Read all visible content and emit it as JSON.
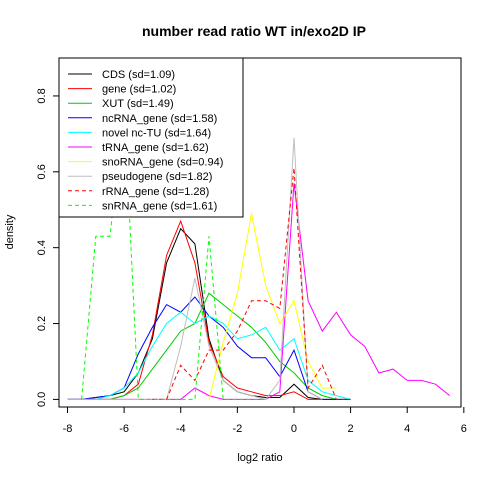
{
  "chart_data": {
    "type": "line",
    "title": "number read ratio WT in/exo2D IP",
    "xlabel": "log2 ratio",
    "ylabel": "density",
    "xlim": [
      -8.3,
      5.9
    ],
    "ylim": [
      -0.02,
      0.9
    ],
    "x_ticks": [
      -8,
      -6,
      -4,
      -2,
      0,
      2,
      4,
      6
    ],
    "y_ticks": [
      0.0,
      0.2,
      0.4,
      0.6,
      0.8
    ],
    "grid": false,
    "legend_position": "top-left",
    "series": [
      {
        "name": "CDS (sd=1.09)",
        "color": "#000000",
        "dash": "solid",
        "x": [
          -8,
          -7.5,
          -7,
          -6.5,
          -6,
          -5.5,
          -5,
          -4.5,
          -4,
          -3.5,
          -3,
          -2.5,
          -2,
          -1.5,
          -1,
          -0.5,
          0,
          0.5,
          1,
          1.5
        ],
        "y": [
          0,
          0,
          0.005,
          0.01,
          0.02,
          0.07,
          0.16,
          0.36,
          0.45,
          0.41,
          0.16,
          0.05,
          0.02,
          0.01,
          0.005,
          0.005,
          0.04,
          0.005,
          0,
          0
        ]
      },
      {
        "name": "gene (sd=1.02)",
        "color": "#ff0000",
        "dash": "solid",
        "x": [
          -8,
          -7.5,
          -7,
          -6.5,
          -6,
          -5.5,
          -5,
          -4.5,
          -4,
          -3.5,
          -3,
          -2.5,
          -2,
          -1.5,
          -1,
          -0.5,
          0,
          0.5,
          1
        ],
        "y": [
          0,
          0,
          0,
          0,
          0.01,
          0.04,
          0.17,
          0.38,
          0.47,
          0.36,
          0.15,
          0.06,
          0.03,
          0.02,
          0.01,
          0.01,
          0.02,
          0,
          0
        ]
      },
      {
        "name": "XUT (sd=1.49)",
        "color": "#00cc00",
        "dash": "solid",
        "x": [
          -8,
          -7.5,
          -7,
          -6.5,
          -6,
          -5.5,
          -5,
          -4.5,
          -4,
          -3.5,
          -3,
          -2.5,
          -2,
          -1.5,
          -1,
          -0.5,
          0,
          0.5,
          1,
          1.5,
          2
        ],
        "y": [
          0,
          0,
          0,
          0,
          0.01,
          0.03,
          0.08,
          0.13,
          0.18,
          0.2,
          0.28,
          0.25,
          0.22,
          0.19,
          0.15,
          0.1,
          0.07,
          0.03,
          0.01,
          0,
          0
        ]
      },
      {
        "name": "ncRNA_gene (sd=1.58)",
        "color": "#0000ff",
        "dash": "solid",
        "x": [
          -8,
          -7.5,
          -7,
          -6.5,
          -6,
          -5.5,
          -5,
          -4.5,
          -4,
          -3.5,
          -3,
          -2.5,
          -2,
          -1.5,
          -1,
          -0.5,
          0,
          0.5,
          1,
          1.5,
          2
        ],
        "y": [
          0,
          0,
          0.005,
          0.01,
          0.03,
          0.12,
          0.19,
          0.25,
          0.23,
          0.27,
          0.22,
          0.19,
          0.14,
          0.11,
          0.11,
          0.06,
          0.13,
          0.02,
          0,
          0,
          0
        ]
      },
      {
        "name": "novel nc-TU (sd=1.64)",
        "color": "#00ffff",
        "dash": "solid",
        "x": [
          -8,
          -7.5,
          -7,
          -6.5,
          -6,
          -5.5,
          -5,
          -4.5,
          -4,
          -3.5,
          -3,
          -2.5,
          -2,
          -1.5,
          -1,
          -0.5,
          0,
          0.5,
          1,
          1.5,
          2
        ],
        "y": [
          0,
          0,
          0,
          0.01,
          0.03,
          0.07,
          0.14,
          0.2,
          0.23,
          0.2,
          0.22,
          0.2,
          0.16,
          0.17,
          0.19,
          0.13,
          0.16,
          0.05,
          0.02,
          0.01,
          0
        ]
      },
      {
        "name": "tRNA_gene (sd=1.62)",
        "color": "#ff00ff",
        "dash": "solid",
        "x": [
          -8,
          -7.5,
          -7,
          -6.5,
          -6,
          -5.5,
          -5,
          -4.5,
          -4,
          -3.5,
          -3,
          -2.5,
          -2,
          -1.5,
          -1,
          -0.5,
          0,
          0.5,
          1,
          1.5,
          2,
          2.5,
          3,
          3.5,
          4,
          4.5,
          5,
          5.5
        ],
        "y": [
          0,
          0,
          0,
          0,
          0,
          0,
          0,
          0,
          0,
          0.03,
          0.01,
          0,
          0,
          0,
          0,
          0.02,
          0.57,
          0.26,
          0.18,
          0.23,
          0.17,
          0.14,
          0.07,
          0.08,
          0.05,
          0.05,
          0.04,
          0.01
        ]
      },
      {
        "name": "snoRNA_gene (sd=0.94)",
        "color": "#ffff00",
        "dash": "solid",
        "x": [
          -3,
          -2.5,
          -2,
          -1.5,
          -1,
          -0.5,
          0,
          0.5,
          1,
          1.5
        ],
        "y": [
          0,
          0.15,
          0.28,
          0.49,
          0.3,
          0.2,
          0.26,
          0.1,
          0.03,
          0.03
        ]
      },
      {
        "name": "pseudogene (sd=1.82)",
        "color": "#bebebe",
        "dash": "solid",
        "x": [
          -8,
          -7.5,
          -7,
          -6.5,
          -6,
          -5.5,
          -5,
          -4.5,
          -4,
          -3.5,
          -3,
          -2.5,
          -2,
          -1.5,
          -1,
          -0.5,
          0,
          0.5,
          1
        ],
        "y": [
          0,
          0,
          0,
          0,
          0,
          0,
          0,
          0,
          0.14,
          0.32,
          0.14,
          0.05,
          0.02,
          0.01,
          0,
          0.05,
          0.69,
          0.02,
          0
        ]
      },
      {
        "name": "rRNA_gene (sd=1.28)",
        "color": "#ff0000",
        "dash": "dashed",
        "x": [
          -5,
          -4.5,
          -4,
          -3.5,
          -3,
          -2.5,
          -2,
          -1.5,
          -1,
          -0.5,
          0,
          0.5,
          1,
          1.5,
          2
        ],
        "y": [
          0,
          0,
          0.09,
          0.05,
          0.13,
          0.13,
          0.18,
          0.26,
          0.26,
          0.24,
          0.61,
          0.03,
          0.09,
          0,
          0
        ]
      },
      {
        "name": "snRNA_gene (sd=1.61)",
        "color": "#00ff00",
        "dash": "dashed",
        "x": [
          -7.5,
          -7,
          -6.5,
          -6,
          -5.5,
          -5,
          -4.5,
          -4,
          -3.5,
          -3,
          -2.5,
          -2,
          -1.5,
          -1
        ],
        "y": [
          0,
          0.43,
          0.43,
          0.78,
          0,
          0,
          0,
          0,
          0,
          0.43,
          0,
          0,
          0,
          0
        ]
      }
    ]
  }
}
